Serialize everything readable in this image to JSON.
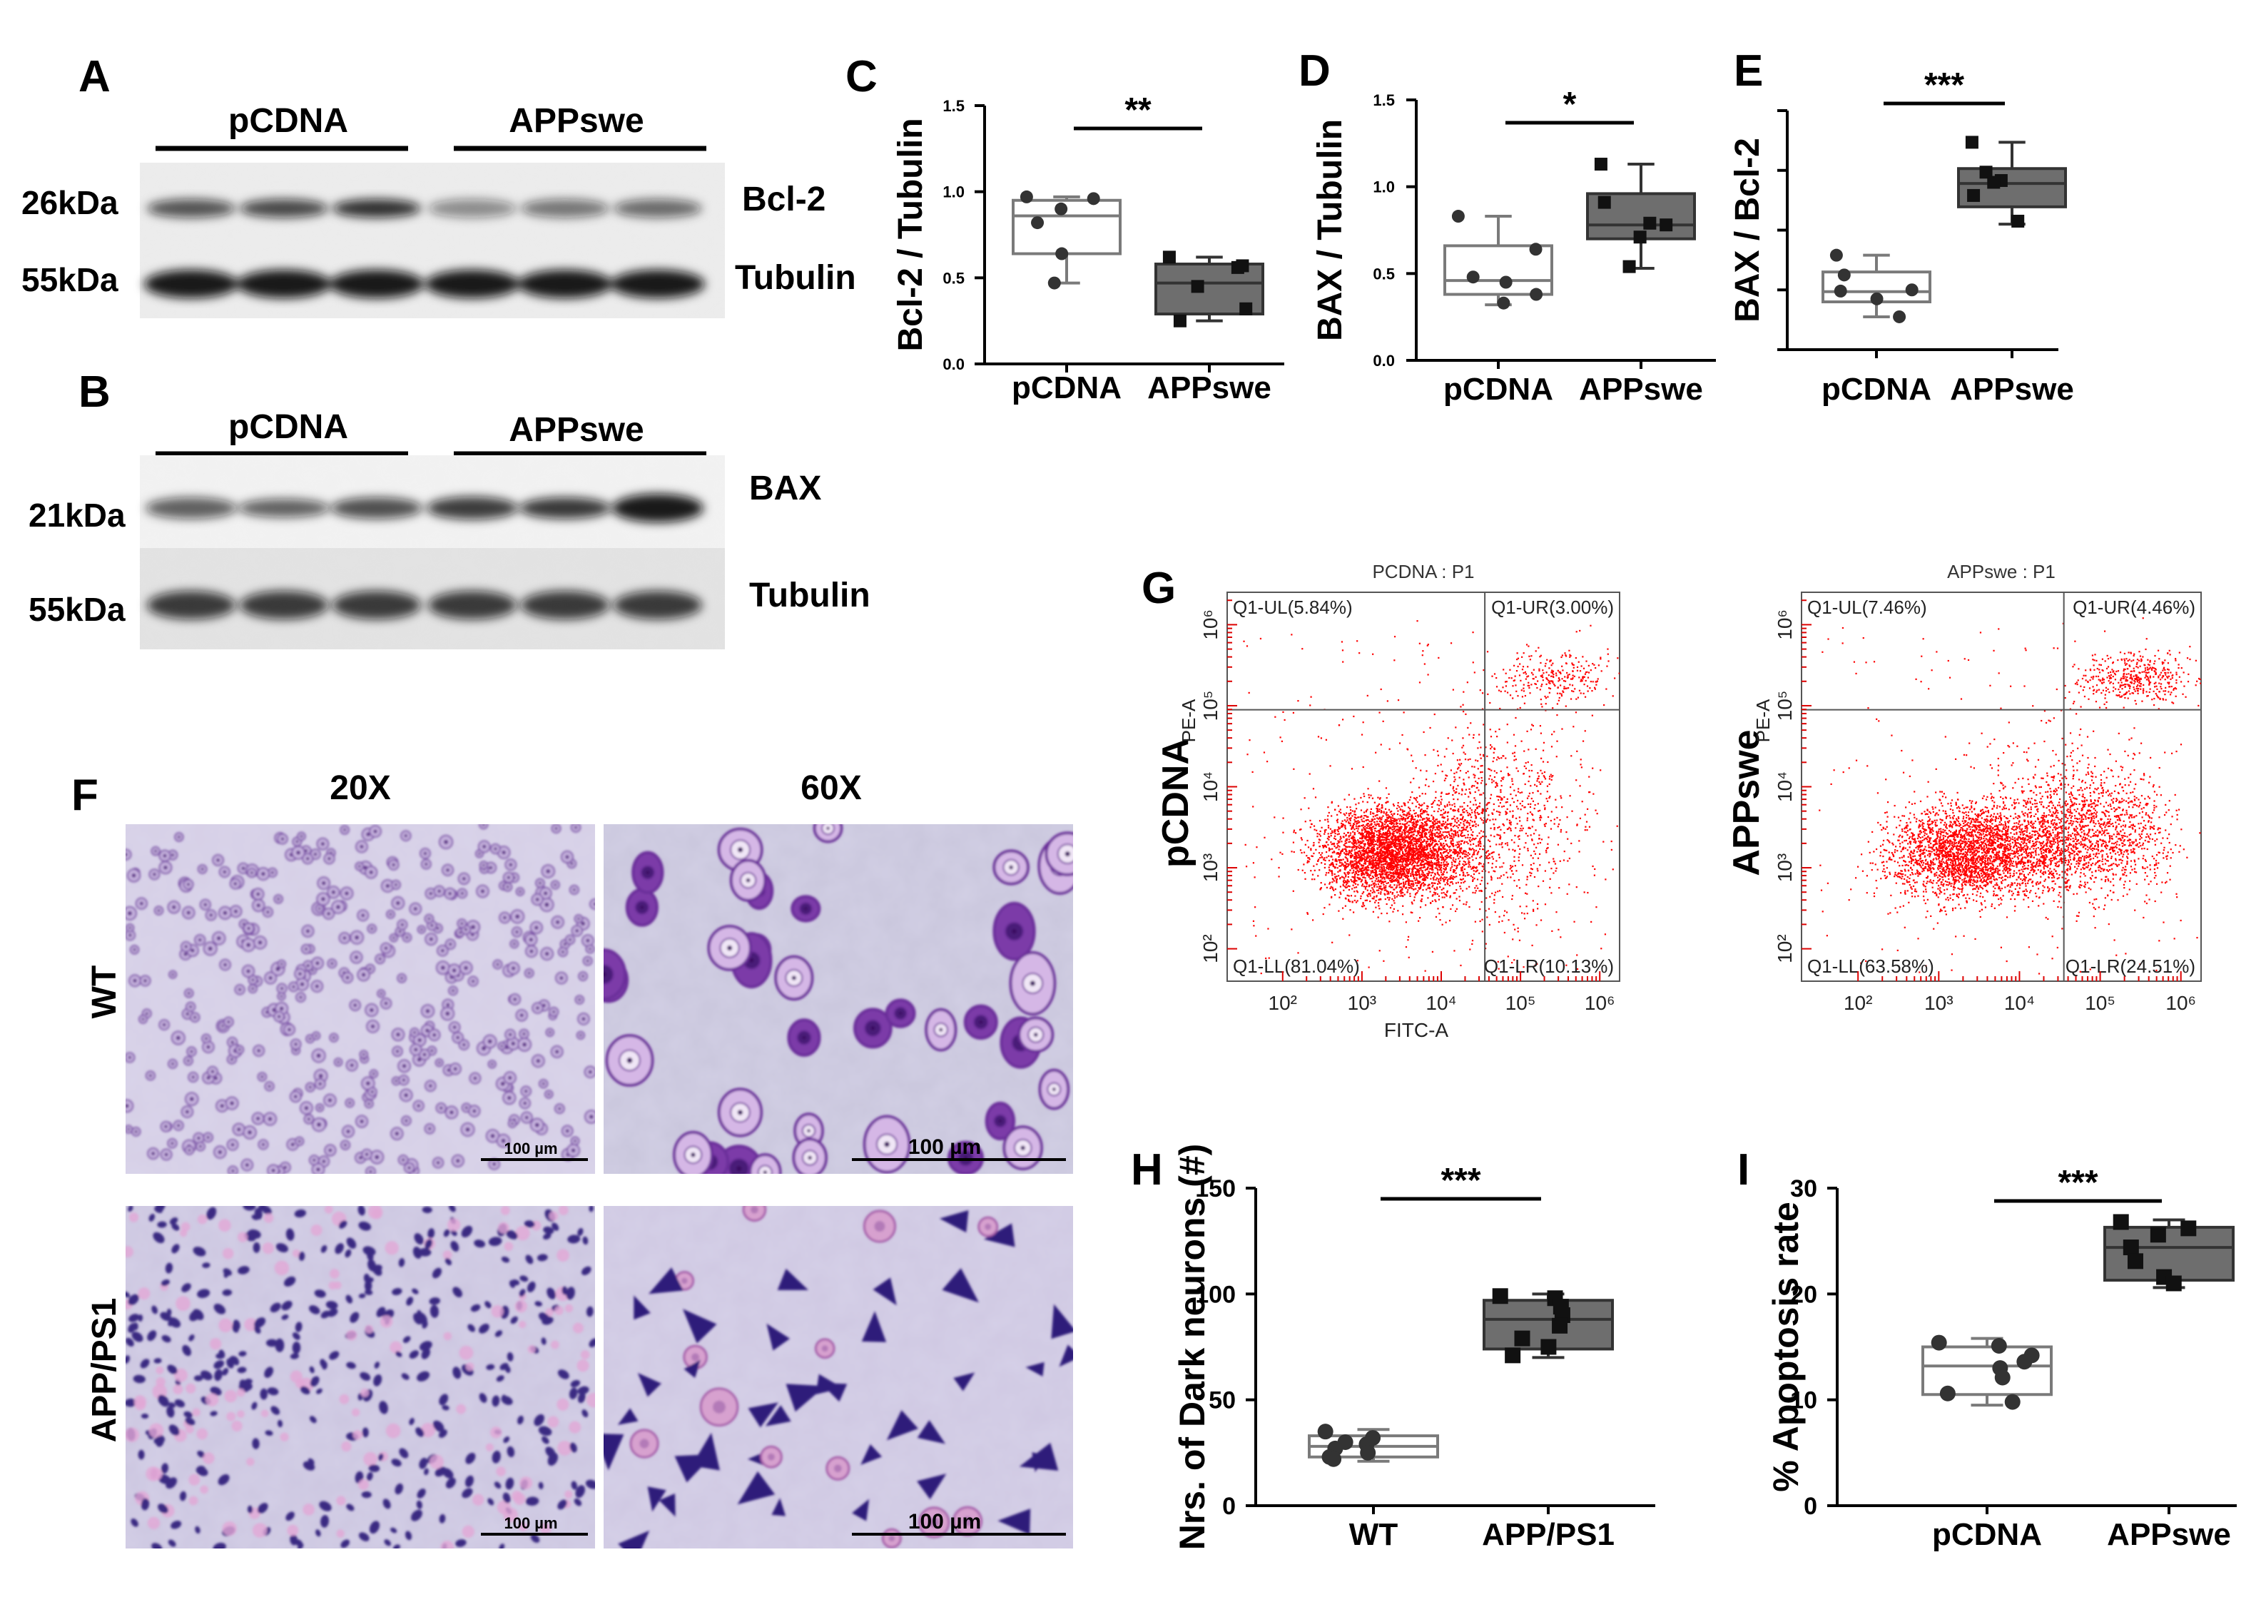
{
  "panel_letters": {
    "A": "A",
    "B": "B",
    "C": "C",
    "D": "D",
    "E": "E",
    "F": "F",
    "G": "G",
    "H": "H",
    "I": "I"
  },
  "western_A": {
    "groups": [
      "pCDNA",
      "APPswe"
    ],
    "markers": [
      "26kDa",
      "55kDa"
    ],
    "proteins": [
      "Bcl-2",
      "Tubulin"
    ]
  },
  "western_B": {
    "groups": [
      "pCDNA",
      "APPswe"
    ],
    "markers": [
      "21kDa",
      "55kDa"
    ],
    "proteins": [
      "BAX",
      "Tubulin"
    ]
  },
  "histology_F": {
    "col_labels": [
      "20X",
      "60X"
    ],
    "row_labels": [
      "WT",
      "APP/PS1"
    ],
    "scalebar_text": "100 µm"
  },
  "flow_G": {
    "row_labels": [
      "pCDNA",
      "APPswe"
    ],
    "xlabel": "FITC-A",
    "ylabel": "PE-A",
    "tick_labels": [
      "10²",
      "10³",
      "10⁴",
      "10⁵",
      "10⁶"
    ],
    "plots": [
      {
        "title": "PCDNA : P1",
        "ul": "Q1-UL(5.84%)",
        "ur": "Q1-UR(3.00%)",
        "ll": "Q1-LL(81.04%)",
        "lr": "Q1-LR(10.13%)"
      },
      {
        "title": "APPswe : P1",
        "ul": "Q1-UL(7.46%)",
        "ur": "Q1-UR(4.46%)",
        "ll": "Q1-LL(63.58%)",
        "lr": "Q1-LR(24.51%)"
      }
    ],
    "dot_color": "#ff0000"
  },
  "chart_data": [
    {
      "panel": "C",
      "type": "box",
      "ylabel": "Bcl-2 / Tubulin",
      "ylim": [
        0,
        1.5
      ],
      "yticks": [
        "0.0",
        "0.5",
        "1.0",
        "1.5"
      ],
      "categories": [
        "pCDNA",
        "APPswe"
      ],
      "significance": "**",
      "groups": [
        {
          "name": "pCDNA",
          "q1": 0.64,
          "median": 0.86,
          "q3": 0.95,
          "min": 0.47,
          "max": 0.97,
          "points": [
            0.97,
            0.96,
            0.9,
            0.82,
            0.64,
            0.47
          ]
        },
        {
          "name": "APPswe",
          "q1": 0.29,
          "median": 0.47,
          "q3": 0.58,
          "min": 0.25,
          "max": 0.62,
          "points": [
            0.62,
            0.57,
            0.56,
            0.45,
            0.32,
            0.25
          ]
        }
      ]
    },
    {
      "panel": "D",
      "type": "box",
      "ylabel": "BAX / Tubulin",
      "ylim": [
        0,
        1.5
      ],
      "yticks": [
        "0.0",
        "0.5",
        "1.0",
        "1.5"
      ],
      "categories": [
        "pCDNA",
        "APPswe"
      ],
      "significance": "*",
      "groups": [
        {
          "name": "pCDNA",
          "q1": 0.38,
          "median": 0.46,
          "q3": 0.66,
          "min": 0.32,
          "max": 0.83,
          "points": [
            0.83,
            0.64,
            0.48,
            0.45,
            0.38,
            0.33
          ]
        },
        {
          "name": "APPswe",
          "q1": 0.7,
          "median": 0.78,
          "q3": 0.96,
          "min": 0.53,
          "max": 1.13,
          "points": [
            1.13,
            0.91,
            0.79,
            0.78,
            0.71,
            0.54
          ]
        }
      ]
    },
    {
      "panel": "E",
      "type": "box",
      "ylabel": "BAX / Bcl-2",
      "ylim": [
        0,
        4
      ],
      "yticks": [
        "",
        "",
        "",
        "",
        ""
      ],
      "categories": [
        "pCDNA",
        "APPswe"
      ],
      "significance": "***",
      "groups": [
        {
          "name": "pCDNA",
          "q1": 0.8,
          "median": 0.97,
          "q3": 1.3,
          "min": 0.55,
          "max": 1.58,
          "points": [
            1.58,
            1.25,
            1.0,
            0.98,
            0.85,
            0.55
          ]
        },
        {
          "name": "APPswe",
          "q1": 2.39,
          "median": 2.78,
          "q3": 3.03,
          "min": 2.1,
          "max": 3.47,
          "points": [
            3.47,
            2.97,
            2.83,
            2.8,
            2.58,
            2.15
          ]
        }
      ]
    },
    {
      "panel": "H",
      "type": "box",
      "ylabel": "Nrs. of Dark neurons (#)",
      "ylim": [
        0,
        150
      ],
      "yticks": [
        "0",
        "50",
        "100",
        "150"
      ],
      "categories": [
        "WT",
        "APP/PS1"
      ],
      "significance": "***",
      "groups": [
        {
          "name": "WT",
          "q1": 23,
          "median": 28,
          "q3": 33,
          "min": 21,
          "max": 36,
          "points": [
            35,
            32,
            30,
            29,
            27,
            25,
            23,
            22
          ]
        },
        {
          "name": "APP/PS1",
          "q1": 74,
          "median": 88,
          "q3": 97,
          "min": 70,
          "max": 100,
          "points": [
            99,
            98,
            94,
            90,
            85,
            79,
            75,
            71
          ]
        }
      ]
    },
    {
      "panel": "I",
      "type": "box",
      "ylabel": "% Apoptosis rate",
      "ylim": [
        0,
        30
      ],
      "yticks": [
        "0",
        "10",
        "20",
        "30"
      ],
      "categories": [
        "pCDNA",
        "APPswe"
      ],
      "significance": "***",
      "groups": [
        {
          "name": "pCDNA",
          "q1": 10.5,
          "median": 13.2,
          "q3": 15.0,
          "min": 9.5,
          "max": 15.8,
          "points": [
            15.4,
            15.1,
            14.2,
            13.6,
            13.0,
            12.1,
            10.6,
            9.8
          ]
        },
        {
          "name": "APPswe",
          "q1": 21.3,
          "median": 24.4,
          "q3": 26.3,
          "min": 20.6,
          "max": 27.0,
          "points": [
            26.8,
            26.2,
            25.6,
            24.4,
            23.1,
            21.6,
            21.0
          ]
        }
      ]
    }
  ]
}
